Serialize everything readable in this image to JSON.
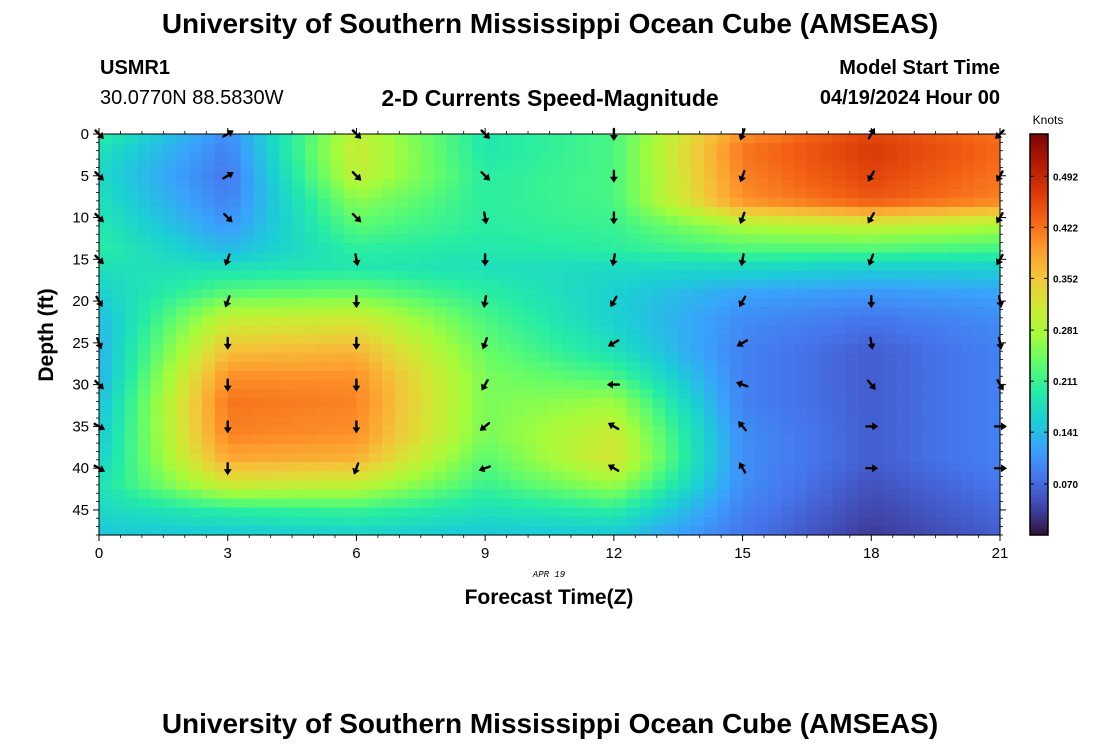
{
  "header": {
    "title": "University of Southern Mississippi Ocean Cube (AMSEAS)",
    "station": "USMR1",
    "coordinates": "30.0770N  88.5830W",
    "subtitle": "2-D Currents Speed-Magnitude",
    "model_start_label": "Model Start Time",
    "model_start_value": "04/19/2024 Hour 00"
  },
  "footer": {
    "title": "University of Southern Mississippi Ocean Cube (AMSEAS)"
  },
  "chart_data": {
    "type": "heatmap",
    "title": "2-D Currents Speed-Magnitude",
    "xlabel": "Forecast Time(Z)",
    "ylabel": "Depth (ft)",
    "date_label": "APR 19",
    "x_ticks": [
      "0",
      "3",
      "6",
      "9",
      "12",
      "15",
      "18",
      "21"
    ],
    "y_ticks": [
      "0",
      "5",
      "10",
      "15",
      "20",
      "25",
      "30",
      "35",
      "40",
      "45"
    ],
    "xlim": [
      0,
      21
    ],
    "ylim": [
      0,
      48
    ],
    "colorbar": {
      "label": "Knots",
      "tick_labels": [
        "0.492",
        "0.422",
        "0.352",
        "0.281",
        "0.211",
        "0.141",
        "0.070"
      ],
      "ticks": [
        0.492,
        0.422,
        0.352,
        0.281,
        0.211,
        0.141,
        0.07
      ],
      "range": [
        0.0,
        0.55
      ],
      "colors": [
        "#30123b",
        "#4145ab",
        "#4675ed",
        "#39a2fc",
        "#1bcfd4",
        "#24eca6",
        "#61fc6c",
        "#a4fc3b",
        "#d1e834",
        "#f3c63a",
        "#fe9b2d",
        "#f36315",
        "#d93806",
        "#b11901",
        "#7a0402"
      ]
    },
    "times": [
      0,
      3,
      6,
      9,
      12,
      15,
      18,
      21
    ],
    "depths_ft": [
      0,
      2,
      5,
      8,
      11,
      14,
      16,
      19,
      22,
      26,
      29,
      32,
      36,
      39,
      42,
      45,
      48
    ],
    "speed_knots": [
      [
        0.2,
        0.1,
        0.3,
        0.19,
        0.22,
        0.4,
        0.46,
        0.42
      ],
      [
        0.18,
        0.09,
        0.31,
        0.19,
        0.22,
        0.42,
        0.47,
        0.43
      ],
      [
        0.17,
        0.08,
        0.3,
        0.2,
        0.22,
        0.41,
        0.46,
        0.42
      ],
      [
        0.18,
        0.09,
        0.26,
        0.2,
        0.22,
        0.4,
        0.44,
        0.41
      ],
      [
        0.19,
        0.11,
        0.23,
        0.2,
        0.21,
        0.28,
        0.3,
        0.28
      ],
      [
        0.2,
        0.14,
        0.2,
        0.19,
        0.2,
        0.22,
        0.22,
        0.21
      ],
      [
        0.18,
        0.18,
        0.19,
        0.18,
        0.17,
        0.17,
        0.16,
        0.16
      ],
      [
        0.16,
        0.23,
        0.24,
        0.2,
        0.16,
        0.12,
        0.11,
        0.12
      ],
      [
        0.14,
        0.3,
        0.31,
        0.22,
        0.16,
        0.1,
        0.08,
        0.1
      ],
      [
        0.13,
        0.36,
        0.37,
        0.24,
        0.18,
        0.09,
        0.06,
        0.09
      ],
      [
        0.13,
        0.4,
        0.4,
        0.25,
        0.22,
        0.09,
        0.06,
        0.09
      ],
      [
        0.14,
        0.42,
        0.41,
        0.25,
        0.27,
        0.09,
        0.06,
        0.09
      ],
      [
        0.15,
        0.41,
        0.4,
        0.25,
        0.31,
        0.1,
        0.06,
        0.09
      ],
      [
        0.16,
        0.38,
        0.37,
        0.23,
        0.32,
        0.1,
        0.06,
        0.09
      ],
      [
        0.18,
        0.31,
        0.3,
        0.21,
        0.27,
        0.1,
        0.05,
        0.08
      ],
      [
        0.17,
        0.2,
        0.21,
        0.18,
        0.2,
        0.09,
        0.04,
        0.07
      ],
      [
        0.15,
        0.15,
        0.16,
        0.15,
        0.15,
        0.08,
        0.03,
        0.06
      ]
    ],
    "arrow_depths_ft": [
      0,
      5,
      10,
      15,
      20,
      25,
      30,
      35,
      40
    ],
    "arrow_directions_deg": [
      [
        135,
        60,
        135,
        135,
        180,
        200,
        30,
        225
      ],
      [
        135,
        60,
        135,
        135,
        180,
        200,
        210,
        210
      ],
      [
        135,
        135,
        135,
        170,
        180,
        200,
        210,
        210
      ],
      [
        135,
        200,
        170,
        180,
        190,
        190,
        200,
        210
      ],
      [
        150,
        200,
        180,
        190,
        210,
        210,
        180,
        170
      ],
      [
        160,
        180,
        180,
        200,
        240,
        240,
        170,
        170
      ],
      [
        135,
        180,
        180,
        210,
        270,
        290,
        140,
        150
      ],
      [
        120,
        180,
        180,
        230,
        300,
        320,
        90,
        90
      ],
      [
        120,
        180,
        200,
        250,
        300,
        330,
        90,
        90
      ]
    ]
  }
}
